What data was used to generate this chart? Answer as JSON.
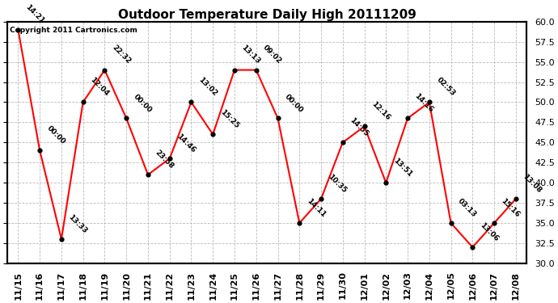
{
  "title": "Outdoor Temperature Daily High 20111209",
  "copyright": "Copyright 2011 Cartronics.com",
  "dates": [
    "11/15",
    "11/16",
    "11/17",
    "11/18",
    "11/19",
    "11/20",
    "11/21",
    "11/22",
    "11/23",
    "11/24",
    "11/25",
    "11/26",
    "11/27",
    "11/28",
    "11/29",
    "11/30",
    "12/01",
    "12/02",
    "12/03",
    "12/04",
    "12/05",
    "12/06",
    "12/07",
    "12/08"
  ],
  "values": [
    59.0,
    44.0,
    33.0,
    50.0,
    54.0,
    48.0,
    41.0,
    43.0,
    50.0,
    46.0,
    54.0,
    54.0,
    48.0,
    35.0,
    38.0,
    45.0,
    47.0,
    40.0,
    48.0,
    50.0,
    35.0,
    32.0,
    35.0,
    38.0
  ],
  "labels": [
    "14:21",
    "00:00",
    "13:33",
    "12:04",
    "22:32",
    "00:00",
    "23:58",
    "14:46",
    "13:02",
    "15:25",
    "13:13",
    "09:02",
    "00:00",
    "14:11",
    "10:35",
    "14:55",
    "12:16",
    "13:51",
    "14:16",
    "02:53",
    "03:13",
    "13:06",
    "15:16",
    "13:08"
  ],
  "ylim": [
    30.0,
    60.0
  ],
  "yticks": [
    30.0,
    32.5,
    35.0,
    37.5,
    40.0,
    42.5,
    45.0,
    47.5,
    50.0,
    52.5,
    55.0,
    57.5,
    60.0
  ],
  "line_color": "red",
  "marker_color": "black",
  "bg_color": "white",
  "grid_color": "#bbbbbb",
  "label_fontsize": 6.5,
  "title_fontsize": 11,
  "tick_fontsize": 8
}
